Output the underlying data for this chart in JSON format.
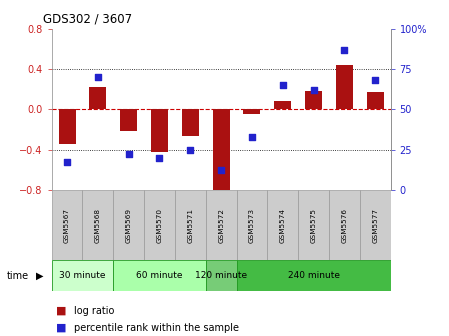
{
  "title": "GDS302 / 3607",
  "samples": [
    "GSM5567",
    "GSM5568",
    "GSM5569",
    "GSM5570",
    "GSM5571",
    "GSM5572",
    "GSM5573",
    "GSM5574",
    "GSM5575",
    "GSM5576",
    "GSM5577"
  ],
  "log_ratio": [
    -0.35,
    0.22,
    -0.22,
    -0.42,
    -0.27,
    -0.85,
    -0.05,
    0.08,
    0.18,
    0.44,
    0.17
  ],
  "percentile": [
    17,
    70,
    22,
    20,
    25,
    12,
    33,
    65,
    62,
    87,
    68
  ],
  "bar_color": "#aa1111",
  "dot_color": "#2222cc",
  "ylim": [
    -0.8,
    0.8
  ],
  "y2lim": [
    0,
    100
  ],
  "yticks": [
    -0.8,
    -0.4,
    0.0,
    0.4,
    0.8
  ],
  "y2ticks": [
    0,
    25,
    50,
    75,
    100
  ],
  "hline_color": "#cc0000",
  "grid_color": "#000000",
  "groups": [
    {
      "label": "30 minute",
      "start": 0,
      "end": 2,
      "color": "#ccffcc"
    },
    {
      "label": "60 minute",
      "start": 2,
      "end": 5,
      "color": "#aaffaa"
    },
    {
      "label": "120 minute",
      "start": 5,
      "end": 6,
      "color": "#77cc77"
    },
    {
      "label": "240 minute",
      "start": 6,
      "end": 11,
      "color": "#44bb44"
    }
  ],
  "legend_log_ratio": "log ratio",
  "legend_percentile": "percentile rank within the sample",
  "time_label": "time",
  "bg_color": "#ffffff",
  "tick_label_color_left": "#cc2222",
  "tick_label_color_right": "#2222cc",
  "label_box_color": "#cccccc",
  "label_box_edge": "#999999"
}
